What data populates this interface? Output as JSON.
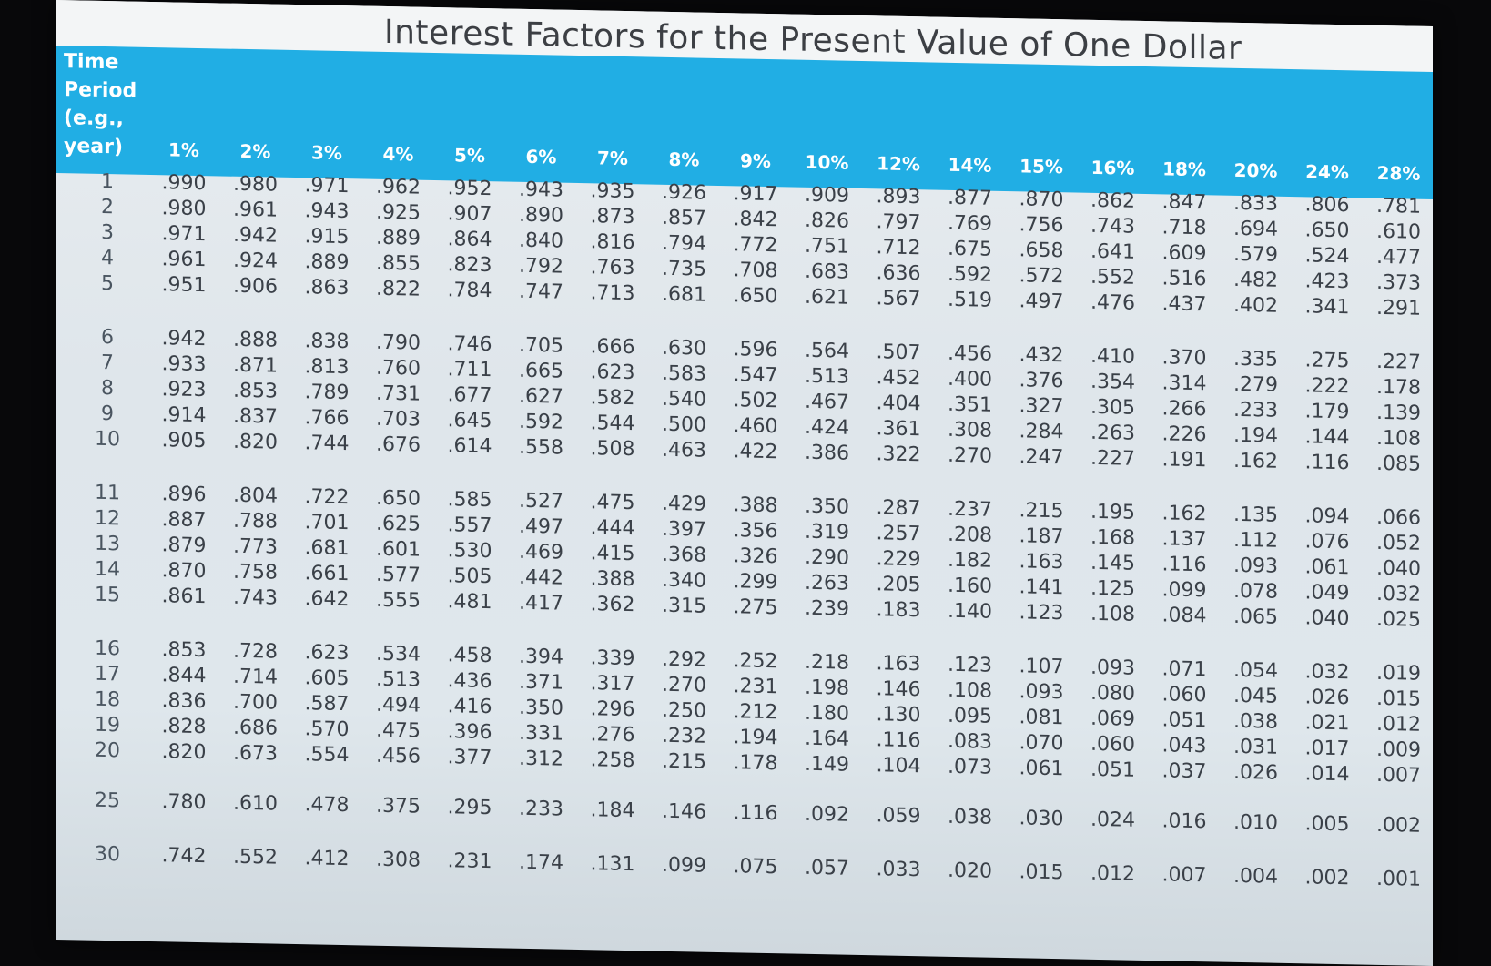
{
  "title": "Interest Factors for the Present Value of One Dollar",
  "time_period_label": [
    "Time",
    "Period",
    "(e.g.,",
    "year)"
  ],
  "rates": [
    "1%",
    "2%",
    "3%",
    "4%",
    "5%",
    "6%",
    "7%",
    "8%",
    "9%",
    "10%",
    "12%",
    "14%",
    "15%",
    "16%",
    "18%",
    "20%",
    "24%",
    "28%"
  ],
  "rows": [
    {
      "period": "1",
      "values": [
        ".990",
        ".980",
        ".971",
        ".962",
        ".952",
        ".943",
        ".935",
        ".926",
        ".917",
        ".909",
        ".893",
        ".877",
        ".870",
        ".862",
        ".847",
        ".833",
        ".806",
        ".781"
      ]
    },
    {
      "period": "2",
      "values": [
        ".980",
        ".961",
        ".943",
        ".925",
        ".907",
        ".890",
        ".873",
        ".857",
        ".842",
        ".826",
        ".797",
        ".769",
        ".756",
        ".743",
        ".718",
        ".694",
        ".650",
        ".610"
      ]
    },
    {
      "period": "3",
      "values": [
        ".971",
        ".942",
        ".915",
        ".889",
        ".864",
        ".840",
        ".816",
        ".794",
        ".772",
        ".751",
        ".712",
        ".675",
        ".658",
        ".641",
        ".609",
        ".579",
        ".524",
        ".477"
      ]
    },
    {
      "period": "4",
      "values": [
        ".961",
        ".924",
        ".889",
        ".855",
        ".823",
        ".792",
        ".763",
        ".735",
        ".708",
        ".683",
        ".636",
        ".592",
        ".572",
        ".552",
        ".516",
        ".482",
        ".423",
        ".373"
      ]
    },
    {
      "period": "5",
      "values": [
        ".951",
        ".906",
        ".863",
        ".822",
        ".784",
        ".747",
        ".713",
        ".681",
        ".650",
        ".621",
        ".567",
        ".519",
        ".497",
        ".476",
        ".437",
        ".402",
        ".341",
        ".291"
      ]
    },
    {
      "period": "6",
      "values": [
        ".942",
        ".888",
        ".838",
        ".790",
        ".746",
        ".705",
        ".666",
        ".630",
        ".596",
        ".564",
        ".507",
        ".456",
        ".432",
        ".410",
        ".370",
        ".335",
        ".275",
        ".227"
      ]
    },
    {
      "period": "7",
      "values": [
        ".933",
        ".871",
        ".813",
        ".760",
        ".711",
        ".665",
        ".623",
        ".583",
        ".547",
        ".513",
        ".452",
        ".400",
        ".376",
        ".354",
        ".314",
        ".279",
        ".222",
        ".178"
      ]
    },
    {
      "period": "8",
      "values": [
        ".923",
        ".853",
        ".789",
        ".731",
        ".677",
        ".627",
        ".582",
        ".540",
        ".502",
        ".467",
        ".404",
        ".351",
        ".327",
        ".305",
        ".266",
        ".233",
        ".179",
        ".139"
      ]
    },
    {
      "period": "9",
      "values": [
        ".914",
        ".837",
        ".766",
        ".703",
        ".645",
        ".592",
        ".544",
        ".500",
        ".460",
        ".424",
        ".361",
        ".308",
        ".284",
        ".263",
        ".226",
        ".194",
        ".144",
        ".108"
      ]
    },
    {
      "period": "10",
      "values": [
        ".905",
        ".820",
        ".744",
        ".676",
        ".614",
        ".558",
        ".508",
        ".463",
        ".422",
        ".386",
        ".322",
        ".270",
        ".247",
        ".227",
        ".191",
        ".162",
        ".116",
        ".085"
      ]
    },
    {
      "period": "11",
      "values": [
        ".896",
        ".804",
        ".722",
        ".650",
        ".585",
        ".527",
        ".475",
        ".429",
        ".388",
        ".350",
        ".287",
        ".237",
        ".215",
        ".195",
        ".162",
        ".135",
        ".094",
        ".066"
      ]
    },
    {
      "period": "12",
      "values": [
        ".887",
        ".788",
        ".701",
        ".625",
        ".557",
        ".497",
        ".444",
        ".397",
        ".356",
        ".319",
        ".257",
        ".208",
        ".187",
        ".168",
        ".137",
        ".112",
        ".076",
        ".052"
      ]
    },
    {
      "period": "13",
      "values": [
        ".879",
        ".773",
        ".681",
        ".601",
        ".530",
        ".469",
        ".415",
        ".368",
        ".326",
        ".290",
        ".229",
        ".182",
        ".163",
        ".145",
        ".116",
        ".093",
        ".061",
        ".040"
      ]
    },
    {
      "period": "14",
      "values": [
        ".870",
        ".758",
        ".661",
        ".577",
        ".505",
        ".442",
        ".388",
        ".340",
        ".299",
        ".263",
        ".205",
        ".160",
        ".141",
        ".125",
        ".099",
        ".078",
        ".049",
        ".032"
      ]
    },
    {
      "period": "15",
      "values": [
        ".861",
        ".743",
        ".642",
        ".555",
        ".481",
        ".417",
        ".362",
        ".315",
        ".275",
        ".239",
        ".183",
        ".140",
        ".123",
        ".108",
        ".084",
        ".065",
        ".040",
        ".025"
      ]
    },
    {
      "period": "16",
      "values": [
        ".853",
        ".728",
        ".623",
        ".534",
        ".458",
        ".394",
        ".339",
        ".292",
        ".252",
        ".218",
        ".163",
        ".123",
        ".107",
        ".093",
        ".071",
        ".054",
        ".032",
        ".019"
      ]
    },
    {
      "period": "17",
      "values": [
        ".844",
        ".714",
        ".605",
        ".513",
        ".436",
        ".371",
        ".317",
        ".270",
        ".231",
        ".198",
        ".146",
        ".108",
        ".093",
        ".080",
        ".060",
        ".045",
        ".026",
        ".015"
      ]
    },
    {
      "period": "18",
      "values": [
        ".836",
        ".700",
        ".587",
        ".494",
        ".416",
        ".350",
        ".296",
        ".250",
        ".212",
        ".180",
        ".130",
        ".095",
        ".081",
        ".069",
        ".051",
        ".038",
        ".021",
        ".012"
      ]
    },
    {
      "period": "19",
      "values": [
        ".828",
        ".686",
        ".570",
        ".475",
        ".396",
        ".331",
        ".276",
        ".232",
        ".194",
        ".164",
        ".116",
        ".083",
        ".070",
        ".060",
        ".043",
        ".031",
        ".017",
        ".009"
      ]
    },
    {
      "period": "20",
      "values": [
        ".820",
        ".673",
        ".554",
        ".456",
        ".377",
        ".312",
        ".258",
        ".215",
        ".178",
        ".149",
        ".104",
        ".073",
        ".061",
        ".051",
        ".037",
        ".026",
        ".014",
        ".007"
      ]
    },
    {
      "period": "25",
      "values": [
        ".780",
        ".610",
        ".478",
        ".375",
        ".295",
        ".233",
        ".184",
        ".146",
        ".116",
        ".092",
        ".059",
        ".038",
        ".030",
        ".024",
        ".016",
        ".010",
        ".005",
        ".002"
      ]
    },
    {
      "period": "30",
      "values": [
        ".742",
        ".552",
        ".412",
        ".308",
        ".231",
        ".174",
        ".131",
        ".099",
        ".075",
        ".057",
        ".033",
        ".020",
        ".015",
        ".012",
        ".007",
        ".004",
        ".002",
        ".001"
      ]
    }
  ],
  "colors": {
    "header_band": "#21aee4",
    "header_text": "#ffffff",
    "body_text": "#3a4048",
    "sheet": "#e3e9ed",
    "background": "#08080a"
  }
}
